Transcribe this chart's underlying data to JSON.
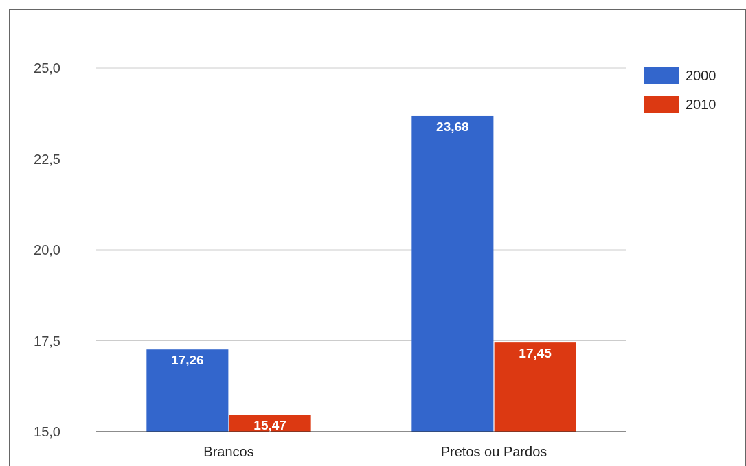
{
  "chart_data": {
    "type": "bar",
    "categories": [
      "Brancos",
      "Pretos ou Pardos"
    ],
    "series": [
      {
        "name": "2000",
        "color": "#3366cc",
        "values": [
          17.26,
          23.68
        ],
        "value_labels": [
          "17,26",
          "23,68"
        ]
      },
      {
        "name": "2010",
        "color": "#dc3912",
        "values": [
          15.47,
          17.45
        ],
        "value_labels": [
          "15,47",
          "17,45"
        ]
      }
    ],
    "ylim": [
      15,
      25
    ],
    "yticks": [
      {
        "value": 15,
        "label": "15,0"
      },
      {
        "value": 17.5,
        "label": "17,5"
      },
      {
        "value": 20,
        "label": "20,0"
      },
      {
        "value": 22.5,
        "label": "22,5"
      },
      {
        "value": 25,
        "label": "25,0"
      }
    ],
    "grid": "y",
    "legend": "top right"
  }
}
